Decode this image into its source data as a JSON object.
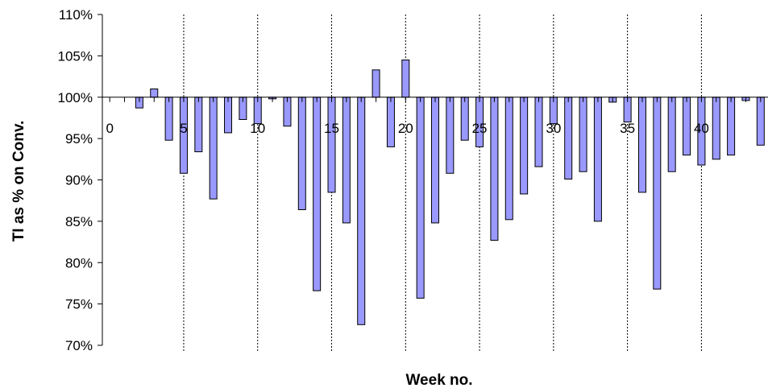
{
  "chart_data": {
    "type": "bar",
    "xlabel": "Week no.",
    "ylabel": "TI as % on Conv.",
    "ylim": [
      70,
      110
    ],
    "y_ticks": [
      70,
      75,
      80,
      85,
      90,
      95,
      100,
      105,
      110
    ],
    "y_tick_labels": [
      "70%",
      "75%",
      "80%",
      "85%",
      "90%",
      "95%",
      "100%",
      "105%",
      "110%"
    ],
    "x_ticks": [
      0,
      5,
      10,
      15,
      20,
      25,
      30,
      35,
      40
    ],
    "x_tick_labels": [
      "0",
      "5",
      "10",
      "15",
      "20",
      "25",
      "30",
      "35",
      "40"
    ],
    "baseline": 100,
    "grid": "vertical dotted",
    "bar_color": "#9999ff",
    "x": [
      2,
      3,
      4,
      5,
      6,
      7,
      8,
      9,
      10,
      11,
      12,
      13,
      14,
      15,
      16,
      17,
      18,
      19,
      20,
      21,
      22,
      23,
      24,
      25,
      26,
      27,
      28,
      29,
      30,
      31,
      32,
      33,
      34,
      35,
      36,
      37,
      38,
      39,
      40,
      41,
      42,
      43,
      44
    ],
    "values": [
      98.7,
      101.0,
      94.8,
      90.8,
      93.4,
      87.7,
      95.7,
      97.3,
      96.8,
      99.8,
      96.5,
      86.4,
      76.6,
      88.5,
      84.8,
      72.5,
      103.3,
      94.0,
      104.5,
      75.7,
      84.8,
      90.8,
      94.8,
      94.0,
      82.7,
      85.2,
      88.3,
      91.6,
      96.8,
      90.1,
      91.0,
      85.0,
      99.4,
      97.0,
      88.5,
      76.8,
      91.0,
      93.0,
      91.8,
      92.5,
      93.0,
      99.6,
      94.2
    ]
  }
}
